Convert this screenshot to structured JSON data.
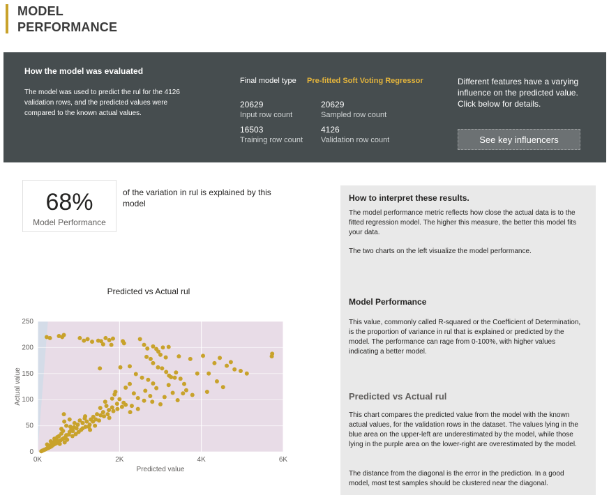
{
  "page": {
    "title_line1": "MODEL",
    "title_line2": "PERFORMANCE"
  },
  "banner": {
    "eval_heading": "How the model was evaluated",
    "eval_text": "The model was used to predict the rul for the 4126 validation rows, and the predicted values were compared to the known actual values.",
    "final_model_label": "Final model type",
    "final_model_value": "Pre-fitted Soft Voting Regressor",
    "input_rows": "20629",
    "input_rows_label": "Input row count",
    "sampled_rows": "20629",
    "sampled_rows_label": "Sampled row count",
    "training_rows": "16503",
    "training_rows_label": "Training row count",
    "validation_rows": "4126",
    "validation_rows_label": "Validation row count",
    "influence_text": "Different features have a varying influence on the predicted value. Click below for details.",
    "influencer_button": "See key influencers",
    "accent_color": "#e3b43c"
  },
  "kpi": {
    "value": "68%",
    "label": "Model Performance",
    "description": "of the variation in rul is explained by this model"
  },
  "chart_data": {
    "type": "scatter",
    "title": "Predicted vs Actual rul",
    "xlabel": "Predicted value",
    "ylabel": "Actual value",
    "xlim": [
      0,
      6000
    ],
    "ylim": [
      0,
      250
    ],
    "x_ticks": [
      "0K",
      "2K",
      "4K",
      "6K"
    ],
    "y_ticks": [
      "0",
      "50",
      "100",
      "150",
      "200",
      "250"
    ],
    "grid": true,
    "point_color": "#c8a22b",
    "underestimate_area_color": "#d4dce8",
    "overestimate_area_color": "#e8dce7",
    "points": [
      [
        220,
        220
      ],
      [
        300,
        218
      ],
      [
        520,
        222
      ],
      [
        600,
        220
      ],
      [
        640,
        224
      ],
      [
        1030,
        218
      ],
      [
        1130,
        213
      ],
      [
        1220,
        216
      ],
      [
        1330,
        211
      ],
      [
        1480,
        213
      ],
      [
        1550,
        212
      ],
      [
        1660,
        218
      ],
      [
        1750,
        214
      ],
      [
        1600,
        206
      ],
      [
        1800,
        205
      ],
      [
        1840,
        217
      ],
      [
        2080,
        212
      ],
      [
        2110,
        208
      ],
      [
        2500,
        216
      ],
      [
        2600,
        205
      ],
      [
        2680,
        198
      ],
      [
        2820,
        202
      ],
      [
        2900,
        197
      ],
      [
        3060,
        200
      ],
      [
        2950,
        192
      ],
      [
        3200,
        201
      ],
      [
        3000,
        186
      ],
      [
        3130,
        181
      ],
      [
        1520,
        160
      ],
      [
        2020,
        162
      ],
      [
        2250,
        164
      ],
      [
        2660,
        182
      ],
      [
        2760,
        178
      ],
      [
        2820,
        170
      ],
      [
        3450,
        183
      ],
      [
        3730,
        178
      ],
      [
        4040,
        184
      ],
      [
        4320,
        170
      ],
      [
        4450,
        180
      ],
      [
        4620,
        165
      ],
      [
        4720,
        172
      ],
      [
        4810,
        158
      ],
      [
        4960,
        155
      ],
      [
        5110,
        150
      ],
      [
        5730,
        188
      ],
      [
        5720,
        183
      ],
      [
        3900,
        150
      ],
      [
        4180,
        150
      ],
      [
        4380,
        135
      ],
      [
        4530,
        124
      ],
      [
        4140,
        115
      ],
      [
        2400,
        149
      ],
      [
        2550,
        142
      ],
      [
        2700,
        138
      ],
      [
        2820,
        131
      ],
      [
        2940,
        162
      ],
      [
        3040,
        160
      ],
      [
        3140,
        153
      ],
      [
        3210,
        146
      ],
      [
        3260,
        143
      ],
      [
        3380,
        152
      ],
      [
        3350,
        142
      ],
      [
        3490,
        140
      ],
      [
        3580,
        130
      ],
      [
        3630,
        118
      ],
      [
        3780,
        109
      ],
      [
        3200,
        128
      ],
      [
        2900,
        122
      ],
      [
        2630,
        117
      ],
      [
        2750,
        107
      ],
      [
        2350,
        112
      ],
      [
        2450,
        103
      ],
      [
        2150,
        123
      ],
      [
        2250,
        130
      ],
      [
        1880,
        110
      ],
      [
        2000,
        101
      ],
      [
        1940,
        92
      ],
      [
        2100,
        94
      ],
      [
        1820,
        85
      ],
      [
        2600,
        98
      ],
      [
        2800,
        96
      ],
      [
        3000,
        91
      ],
      [
        3100,
        105
      ],
      [
        3300,
        113
      ],
      [
        3420,
        99
      ],
      [
        3550,
        112
      ],
      [
        2300,
        88
      ],
      [
        2450,
        82
      ],
      [
        2260,
        76
      ],
      [
        1680,
        88
      ],
      [
        1740,
        80
      ],
      [
        1600,
        76
      ],
      [
        1540,
        70
      ],
      [
        1450,
        72
      ],
      [
        1360,
        67
      ],
      [
        1300,
        62
      ],
      [
        1200,
        58
      ],
      [
        1150,
        64
      ],
      [
        1100,
        55
      ],
      [
        1030,
        60
      ],
      [
        980,
        52
      ],
      [
        950,
        45
      ],
      [
        890,
        47
      ],
      [
        860,
        40
      ],
      [
        820,
        42
      ],
      [
        780,
        38
      ],
      [
        760,
        33
      ],
      [
        700,
        32
      ],
      [
        680,
        28
      ],
      [
        640,
        26
      ],
      [
        600,
        24
      ],
      [
        560,
        22
      ],
      [
        520,
        20
      ],
      [
        480,
        18
      ],
      [
        450,
        16
      ],
      [
        400,
        14
      ],
      [
        360,
        12
      ],
      [
        330,
        10
      ],
      [
        300,
        9
      ],
      [
        260,
        7
      ],
      [
        220,
        6
      ],
      [
        200,
        5
      ],
      [
        170,
        4
      ],
      [
        140,
        3
      ],
      [
        110,
        2
      ],
      [
        90,
        1
      ],
      [
        1900,
        115
      ],
      [
        1820,
        102
      ],
      [
        1650,
        96
      ],
      [
        1530,
        84
      ],
      [
        1750,
        65
      ],
      [
        1500,
        60
      ],
      [
        1400,
        50
      ],
      [
        1250,
        48
      ],
      [
        1100,
        45
      ],
      [
        900,
        55
      ],
      [
        780,
        62
      ],
      [
        700,
        50
      ],
      [
        620,
        40
      ],
      [
        580,
        35
      ],
      [
        520,
        30
      ],
      [
        480,
        28
      ],
      [
        460,
        22
      ],
      [
        420,
        20
      ],
      [
        380,
        18
      ],
      [
        340,
        15
      ],
      [
        300,
        12
      ],
      [
        270,
        10
      ],
      [
        250,
        8
      ],
      [
        230,
        14
      ],
      [
        320,
        20
      ],
      [
        410,
        25
      ],
      [
        540,
        15
      ],
      [
        660,
        18
      ],
      [
        720,
        23
      ],
      [
        850,
        30
      ],
      [
        930,
        34
      ],
      [
        1000,
        38
      ],
      [
        1060,
        42
      ],
      [
        1170,
        48
      ],
      [
        1270,
        52
      ],
      [
        1350,
        58
      ],
      [
        1420,
        62
      ],
      [
        1620,
        68
      ],
      [
        1710,
        72
      ],
      [
        1850,
        78
      ],
      [
        1950,
        82
      ],
      [
        2060,
        86
      ],
      [
        2150,
        90
      ],
      [
        580,
        44
      ],
      [
        650,
        58
      ],
      [
        640,
        72
      ],
      [
        800,
        48
      ],
      [
        1160,
        68
      ],
      [
        1280,
        42
      ]
    ]
  },
  "interpret": {
    "heading": "How to interpret these results.",
    "intro": "The model performance metric reflects how close the actual data is to the fitted regression model.  The higher this measure, the better this model fits your data.",
    "intro2": "The two charts on the left visualize the model performance.",
    "perf_heading": "Model Performance",
    "perf_text": "This value, commonly called R-squared or the Coefficient of Determination, is the proportion of variance in rul that is explained or predicted by  the model. The performance can rage from 0-100%, with higher values indicating a better model.",
    "pva_heading": "Predicted vs Actual rul",
    "pva_text": "This chart compares the predicted value from the model with the known actual values, for the validation rows in the dataset.  The values lying in the blue area on the upper-left are underestimated by the model, while those lying in the purple area on the lower-right are overestimated by the model.",
    "pva_text2": "The distance from the diagonal is the error in the prediction. In a good model, most test samples should be clustered near the diagonal."
  }
}
